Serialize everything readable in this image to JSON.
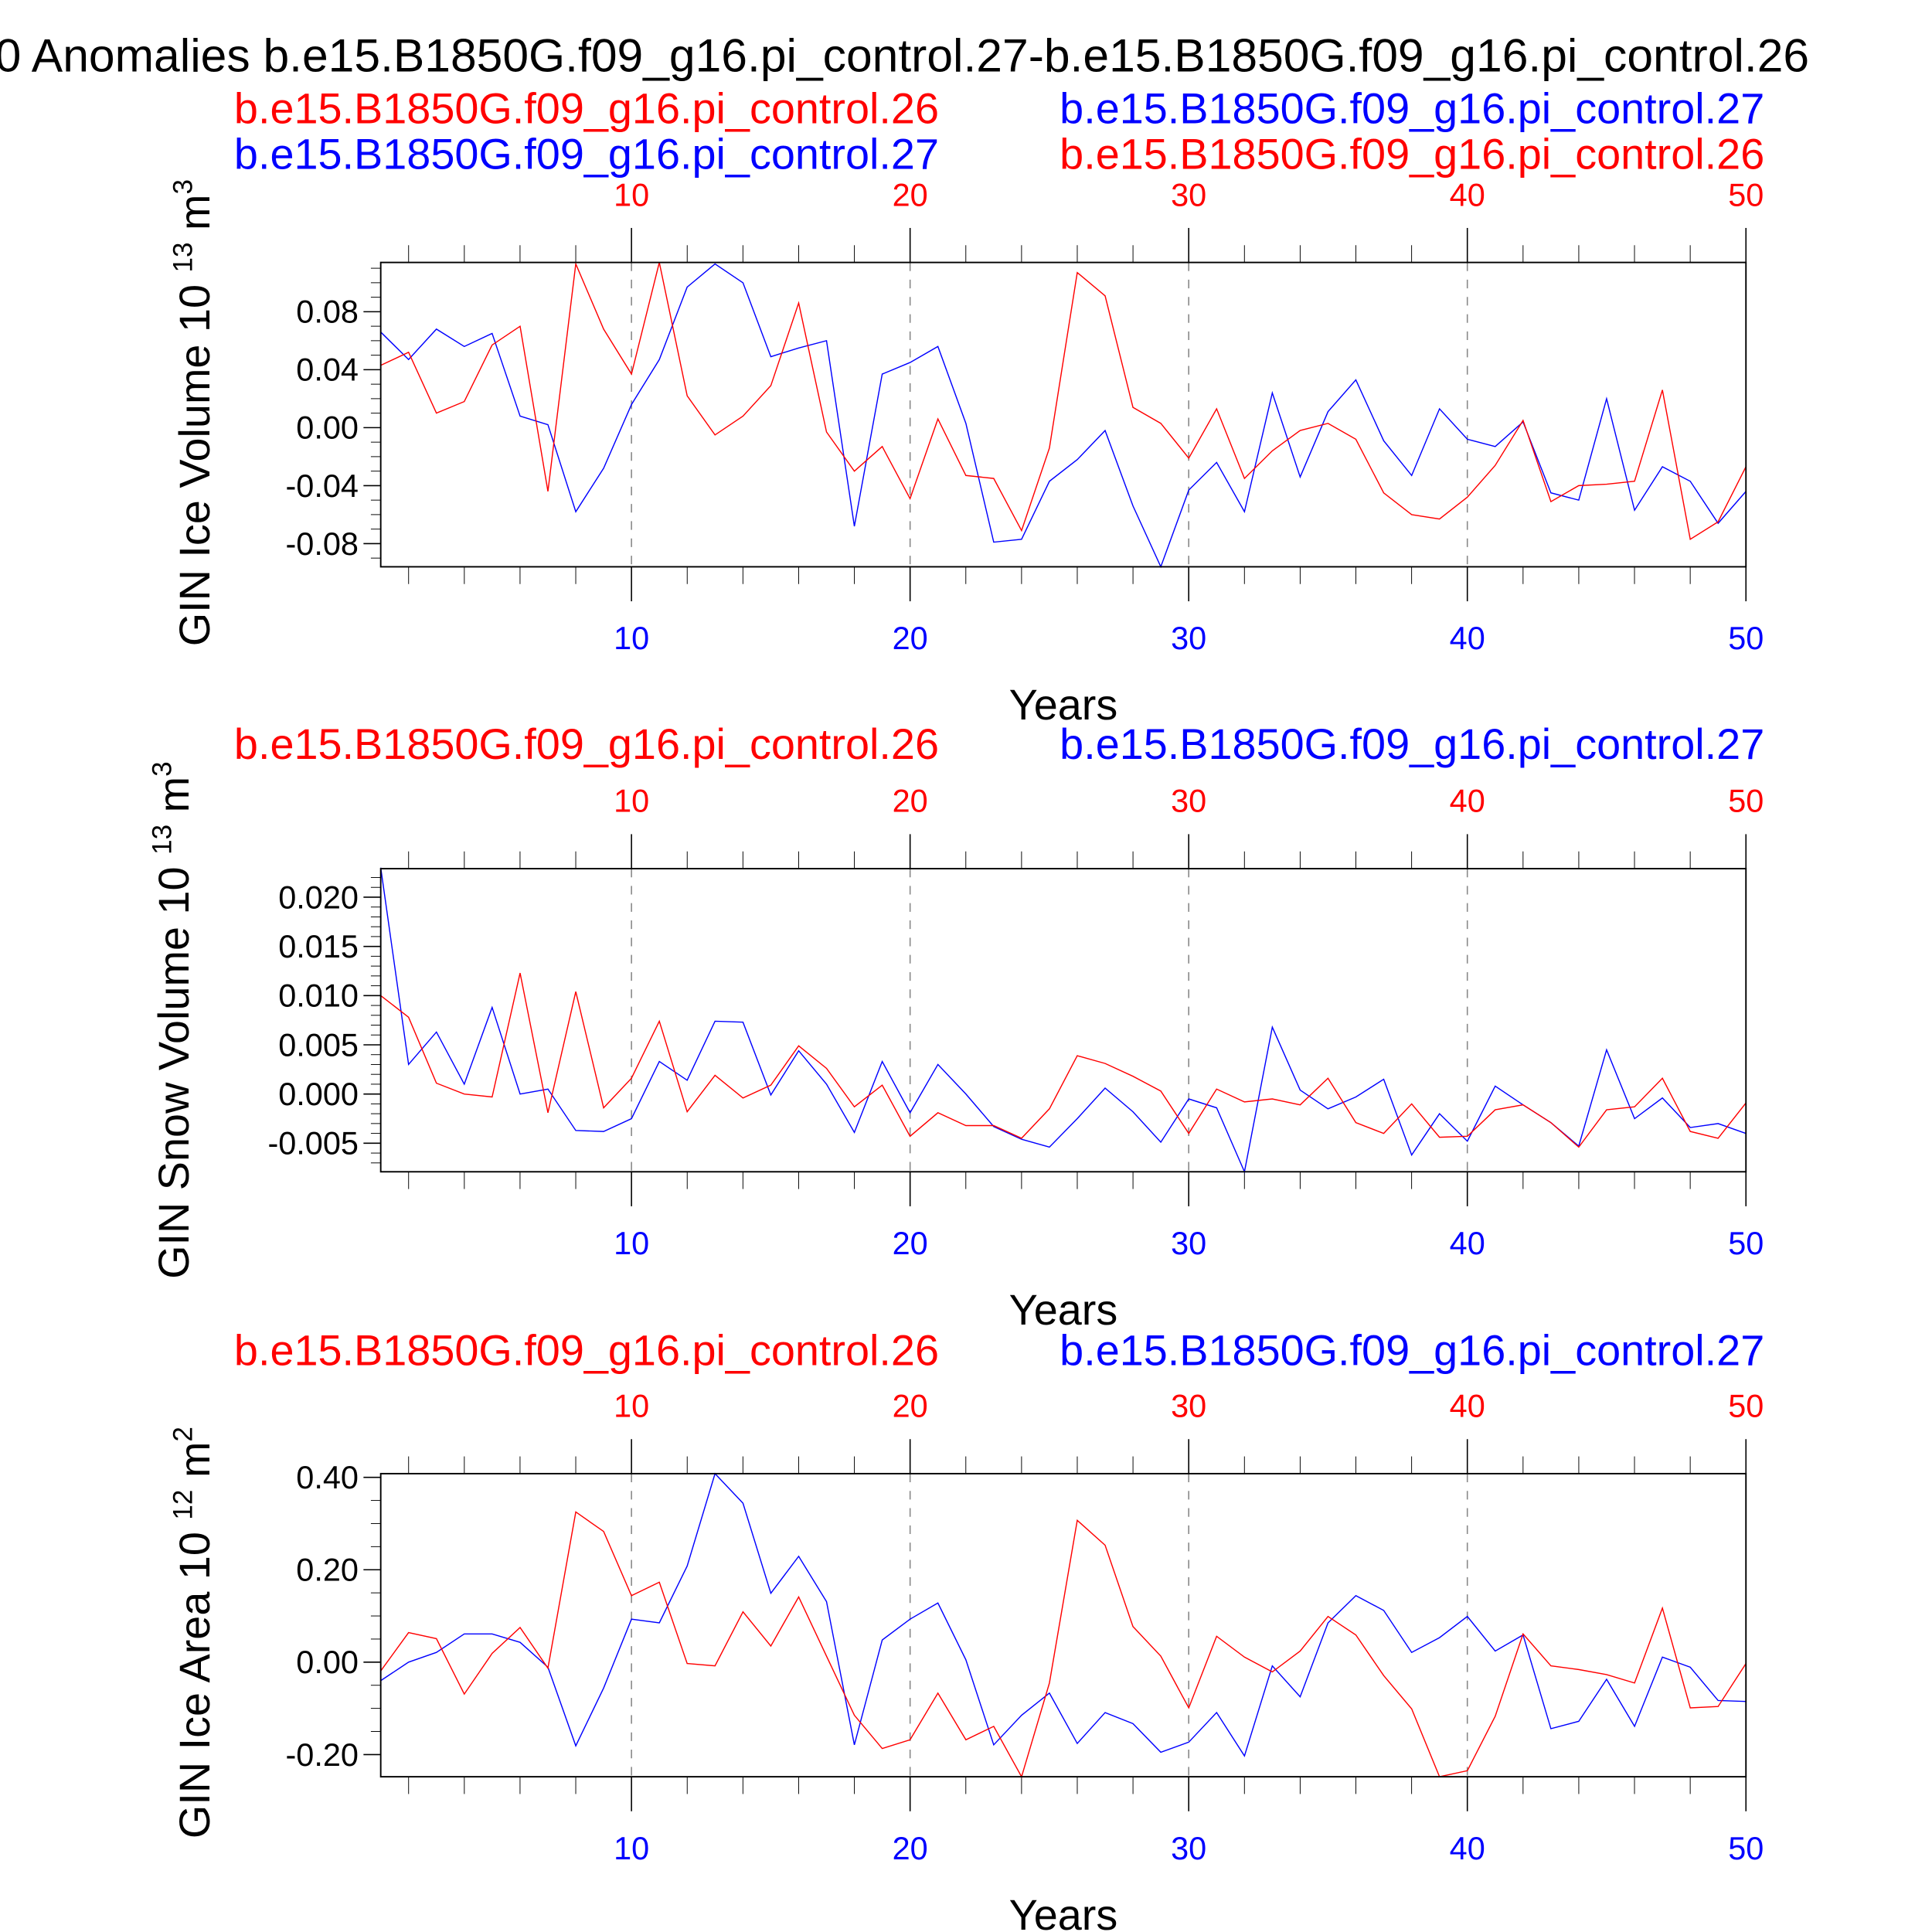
{
  "title": "0 Anomalies b.e15.B1850G.f09_g16.pi_control.27-b.e15.B1850G.f09_g16.pi_control.26",
  "colors": {
    "run26": "#ff0000",
    "run27": "#0000ff",
    "grid": "#888888"
  },
  "chart_data": [
    {
      "type": "line",
      "ylabel": "GIN Ice Volume 10",
      "yunit_exp": "13",
      "yunit": "m",
      "yunit_pow": "3",
      "xlabel": "Years",
      "xlim": [
        1,
        50
      ],
      "ylim": [
        -0.096,
        0.114
      ],
      "yticks": [
        -0.08,
        -0.04,
        0.0,
        0.04,
        0.08
      ],
      "ytick_labels": [
        "-0.08",
        "-0.04",
        "0.00",
        "0.04",
        "0.08"
      ],
      "yminor": 0.01,
      "xticks": [
        10,
        20,
        30,
        40,
        50
      ],
      "xtick_labels": [
        "10",
        "20",
        "30",
        "40",
        "50"
      ],
      "grid": "dashed vertical at major x ticks",
      "top_labels": [
        {
          "text": "b.e15.B1850G.f09_g16.pi_control.26",
          "color": "red",
          "pos": "upper-left"
        },
        {
          "text": "b.e15.B1850G.f09_g16.pi_control.27",
          "color": "blue",
          "pos": "upper-right"
        },
        {
          "text": "b.e15.B1850G.f09_g16.pi_control.27",
          "color": "blue",
          "pos": "lower-left"
        },
        {
          "text": "b.e15.B1850G.f09_g16.pi_control.26",
          "color": "red",
          "pos": "lower-right"
        }
      ],
      "series": [
        {
          "name": "b.e15.B1850G.f09_g16.pi_control.27",
          "color": "blue",
          "values": [
            0.066,
            0.047,
            0.068,
            0.056,
            0.065,
            0.008,
            0.002,
            -0.058,
            -0.028,
            0.016,
            0.047,
            0.097,
            0.113,
            0.1,
            0.049,
            0.055,
            0.06,
            -0.068,
            0.037,
            0.045,
            0.056,
            0.003,
            -0.079,
            -0.077,
            -0.037,
            -0.022,
            -0.002,
            -0.054,
            -0.096,
            -0.043,
            -0.024,
            -0.058,
            0.024,
            -0.034,
            0.011,
            0.033,
            -0.009,
            -0.033,
            0.013,
            -0.008,
            -0.013,
            0.004,
            -0.045,
            -0.05,
            0.02,
            -0.057,
            -0.027,
            -0.037,
            -0.066,
            -0.044
          ]
        },
        {
          "name": "b.e15.B1850G.f09_g16.pi_control.26",
          "color": "red",
          "values": [
            0.043,
            0.052,
            0.01,
            0.018,
            0.057,
            0.07,
            -0.044,
            0.113,
            0.068,
            0.037,
            0.114,
            0.022,
            -0.005,
            0.008,
            0.029,
            0.086,
            -0.003,
            -0.03,
            -0.013,
            -0.049,
            0.006,
            -0.033,
            -0.035,
            -0.071,
            -0.014,
            0.107,
            0.091,
            0.014,
            0.003,
            -0.021,
            0.013,
            -0.035,
            -0.016,
            -0.002,
            0.003,
            -0.008,
            -0.045,
            -0.06,
            -0.063,
            -0.048,
            -0.026,
            0.005,
            -0.051,
            -0.04,
            -0.039,
            -0.037,
            0.026,
            -0.077,
            -0.065,
            -0.027
          ]
        }
      ]
    },
    {
      "type": "line",
      "ylabel": "GIN Snow Volume 10",
      "yunit_exp": "13",
      "yunit": "m",
      "yunit_pow": "3",
      "xlabel": "Years",
      "xlim": [
        1,
        50
      ],
      "ylim": [
        -0.0079,
        0.0229
      ],
      "yticks": [
        -0.005,
        0.0,
        0.005,
        0.01,
        0.015,
        0.02
      ],
      "ytick_labels": [
        "-0.005",
        "0.000",
        "0.005",
        "0.010",
        "0.015",
        "0.020"
      ],
      "yminor": 0.001,
      "xticks": [
        10,
        20,
        30,
        40,
        50
      ],
      "xtick_labels": [
        "10",
        "20",
        "30",
        "40",
        "50"
      ],
      "grid": "dashed vertical at major x ticks",
      "top_labels": [
        {
          "text": "b.e15.B1850G.f09_g16.pi_control.26",
          "color": "red",
          "pos": "upper-left"
        },
        {
          "text": "b.e15.B1850G.f09_g16.pi_control.27",
          "color": "blue",
          "pos": "upper-right"
        }
      ],
      "series": [
        {
          "name": "b.e15.B1850G.f09_g16.pi_control.27",
          "color": "blue",
          "values": [
            0.023,
            0.003,
            0.0063,
            0.001,
            0.0088,
            0.0,
            0.0005,
            -0.0037,
            -0.0038,
            -0.0025,
            0.0033,
            0.0014,
            0.0074,
            0.0073,
            -0.0001,
            0.0044,
            0.001,
            -0.0039,
            0.0033,
            -0.0019,
            0.003,
            0.0,
            -0.0033,
            -0.0046,
            -0.0054,
            -0.0025,
            0.0006,
            -0.0018,
            -0.0049,
            -0.0005,
            -0.0014,
            -0.0079,
            0.0068,
            0.0004,
            -0.0015,
            -0.0003,
            0.0015,
            -0.0062,
            -0.002,
            -0.0048,
            0.0008,
            -0.0011,
            -0.0029,
            -0.0053,
            0.0045,
            -0.0025,
            -0.0004,
            -0.0034,
            -0.003,
            -0.004
          ]
        },
        {
          "name": "b.e15.B1850G.f09_g16.pi_control.26",
          "color": "red",
          "values": [
            0.01,
            0.0078,
            0.0011,
            0.0,
            -0.0003,
            0.0123,
            -0.0019,
            0.0104,
            -0.0014,
            0.0016,
            0.0074,
            -0.0018,
            0.0019,
            -0.0004,
            0.0009,
            0.0049,
            0.0026,
            -0.0013,
            0.0009,
            -0.0043,
            -0.0019,
            -0.0032,
            -0.0032,
            -0.0045,
            -0.0015,
            0.0039,
            0.0031,
            0.0018,
            0.0003,
            -0.004,
            0.0005,
            -0.0008,
            -0.0005,
            -0.0011,
            0.0016,
            -0.0029,
            -0.004,
            -0.001,
            -0.0044,
            -0.0043,
            -0.0016,
            -0.0011,
            -0.0029,
            -0.0054,
            -0.0016,
            -0.0013,
            0.0016,
            -0.0038,
            -0.0045,
            -0.0009
          ]
        }
      ]
    },
    {
      "type": "line",
      "ylabel": "GIN Ice Area 10",
      "yunit_exp": "12",
      "yunit": "m",
      "yunit_pow": "2",
      "xlabel": "Years",
      "xlim": [
        1,
        50
      ],
      "ylim": [
        -0.248,
        0.408
      ],
      "yticks": [
        -0.2,
        0.0,
        0.2,
        0.4
      ],
      "ytick_labels": [
        "-0.20",
        "0.00",
        "0.20",
        "0.40"
      ],
      "yminor": 0.05,
      "xticks": [
        10,
        20,
        30,
        40,
        50
      ],
      "xtick_labels": [
        "10",
        "20",
        "30",
        "40",
        "50"
      ],
      "grid": "dashed vertical at major x ticks",
      "top_labels": [
        {
          "text": "b.e15.B1850G.f09_g16.pi_control.26",
          "color": "red",
          "pos": "upper-left"
        },
        {
          "text": "b.e15.B1850G.f09_g16.pi_control.27",
          "color": "blue",
          "pos": "upper-right"
        }
      ],
      "series": [
        {
          "name": "b.e15.B1850G.f09_g16.pi_control.27",
          "color": "blue",
          "values": [
            -0.04,
            0.0,
            0.021,
            0.061,
            0.061,
            0.043,
            -0.011,
            -0.181,
            -0.056,
            0.093,
            0.085,
            0.208,
            0.408,
            0.344,
            0.149,
            0.229,
            0.131,
            -0.179,
            0.048,
            0.093,
            0.128,
            0.005,
            -0.179,
            -0.115,
            -0.067,
            -0.176,
            -0.109,
            -0.133,
            -0.195,
            -0.173,
            -0.109,
            -0.203,
            -0.008,
            -0.075,
            0.085,
            0.144,
            0.112,
            0.021,
            0.053,
            0.099,
            0.024,
            0.059,
            -0.144,
            -0.128,
            -0.037,
            -0.139,
            0.011,
            -0.011,
            -0.083,
            -0.085
          ]
        },
        {
          "name": "b.e15.B1850G.f09_g16.pi_control.26",
          "color": "red",
          "values": [
            -0.019,
            0.064,
            0.051,
            -0.069,
            0.019,
            0.075,
            -0.013,
            0.325,
            0.283,
            0.144,
            0.173,
            -0.003,
            -0.008,
            0.109,
            0.035,
            0.141,
            0.013,
            -0.115,
            -0.187,
            -0.168,
            -0.067,
            -0.168,
            -0.139,
            -0.248,
            -0.045,
            0.307,
            0.253,
            0.077,
            0.013,
            -0.099,
            0.056,
            0.011,
            -0.021,
            0.024,
            0.099,
            0.059,
            -0.029,
            -0.101,
            -0.248,
            -0.235,
            -0.117,
            0.061,
            -0.008,
            -0.016,
            -0.027,
            -0.045,
            0.117,
            -0.099,
            -0.096,
            -0.003
          ]
        }
      ]
    }
  ]
}
